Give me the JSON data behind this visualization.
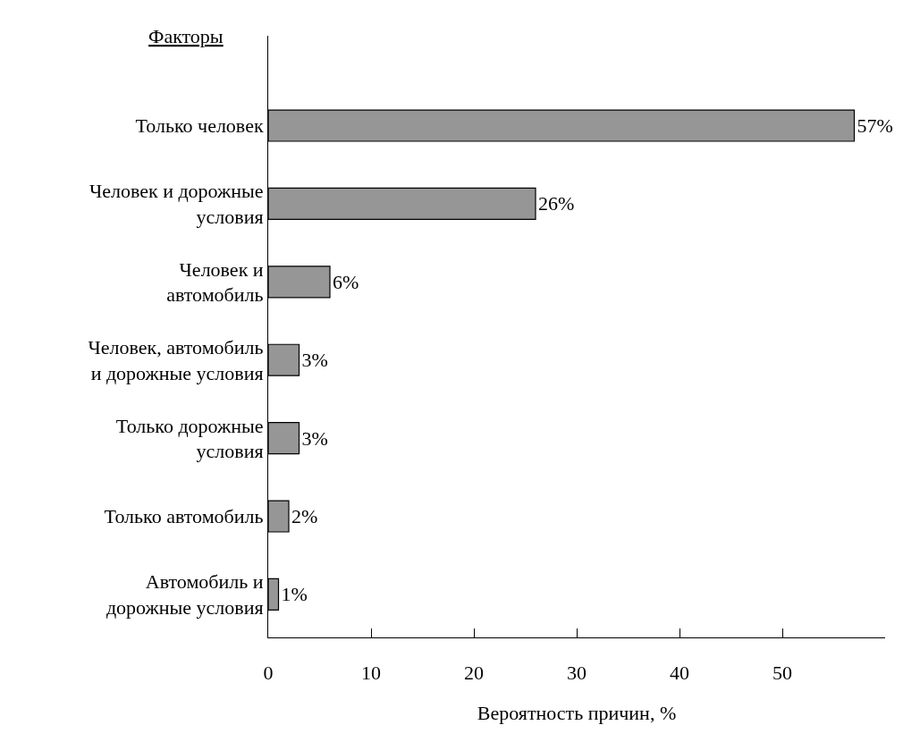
{
  "chart_data": {
    "type": "bar",
    "orientation": "horizontal",
    "ylabel": "Факторы",
    "xlabel": "Вероятность причин, %",
    "categories": [
      "Только человек",
      "Человек и дорожные\nусловия",
      "Человек и\nавтомобиль",
      "Человек, автомобиль\nи дорожные условия",
      "Только дорожные\nусловия",
      "Только автомобиль",
      "Автомобиль и\nдорожные условия"
    ],
    "values": [
      57,
      26,
      6,
      3,
      3,
      2,
      1
    ],
    "value_labels": [
      "57%",
      "26%",
      "6%",
      "3%",
      "3%",
      "2%",
      "1%"
    ],
    "color": "#969696",
    "xlim": [
      0,
      60
    ],
    "xticks": [
      0,
      10,
      20,
      30,
      40,
      50
    ],
    "legend": false
  }
}
